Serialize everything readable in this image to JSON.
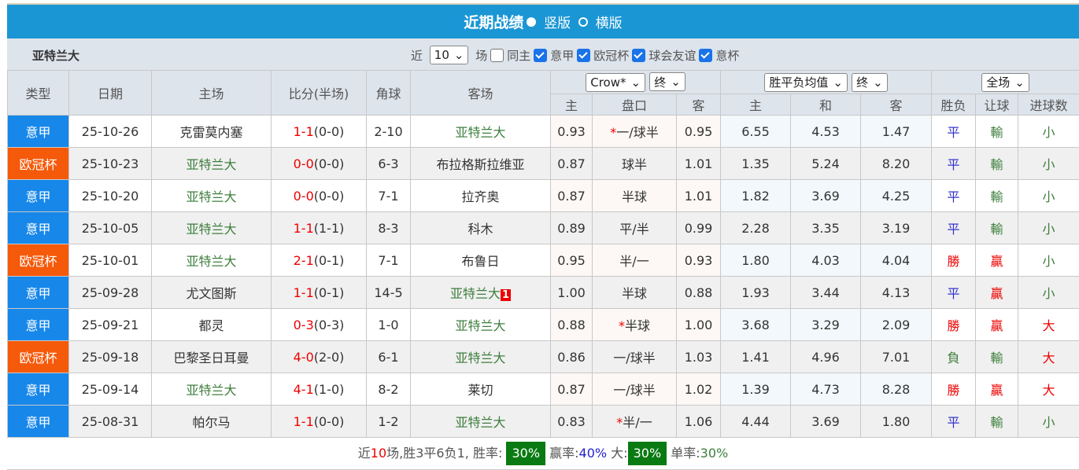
{
  "header": {
    "title": "近期战绩",
    "view_vertical": "竖版",
    "view_horizontal": "横版"
  },
  "filter": {
    "team": "亚特兰大",
    "recent_label": "近",
    "count": "10",
    "matches_label": "场",
    "same_home": "同主",
    "same_home_checked": false,
    "leagues": [
      {
        "label": "意甲",
        "checked": true
      },
      {
        "label": "欧冠杯",
        "checked": true
      },
      {
        "label": "球会友谊",
        "checked": true
      },
      {
        "label": "意杯",
        "checked": true
      }
    ]
  },
  "columns": {
    "type": "类型",
    "date": "日期",
    "home": "主场",
    "score": "比分(半场)",
    "corner": "角球",
    "away": "客场",
    "company_select": "Crow*",
    "final_select1": "终",
    "avg_select": "胜平负均值",
    "final_select2": "终",
    "scope_select": "全场",
    "ah_home": "主",
    "ah_line": "盘口",
    "ah_away": "客",
    "eu_home": "主",
    "eu_draw": "和",
    "eu_away": "客",
    "result": "胜负",
    "handicap": "让球",
    "goals": "进球数"
  },
  "colors": {
    "serie_a": "#1787ea",
    "ucl": "#f55a0a",
    "win": "#e00",
    "draw": "#33c",
    "loss": "#3d7e3d"
  },
  "rows": [
    {
      "type": "意甲",
      "league": "serie_a",
      "date": "25-10-26",
      "home": "克雷莫内塞",
      "ft": "1-1",
      "ht": "(0-0)",
      "corner": "2-10",
      "away": "亚特兰大",
      "hl": "away",
      "ah_h": "0.93",
      "star": true,
      "line": "一/球半",
      "ah_a": "0.95",
      "eh": "6.55",
      "ed": "4.53",
      "ea": "1.47",
      "res": "平",
      "hc": "輸",
      "gl": "小"
    },
    {
      "type": "欧冠杯",
      "league": "ucl",
      "date": "25-10-23",
      "home": "亚特兰大",
      "ft": "0-0",
      "ht": "(0-0)",
      "corner": "6-3",
      "away": "布拉格斯拉维亚",
      "hl": "home",
      "ah_h": "0.87",
      "star": false,
      "line": "球半",
      "ah_a": "1.01",
      "eh": "1.35",
      "ed": "5.24",
      "ea": "8.20",
      "res": "平",
      "hc": "輸",
      "gl": "小"
    },
    {
      "type": "意甲",
      "league": "serie_a",
      "date": "25-10-20",
      "home": "亚特兰大",
      "ft": "0-0",
      "ht": "(0-0)",
      "corner": "7-1",
      "away": "拉齐奥",
      "hl": "home",
      "ah_h": "0.87",
      "star": false,
      "line": "半球",
      "ah_a": "1.01",
      "eh": "1.82",
      "ed": "3.69",
      "ea": "4.25",
      "res": "平",
      "hc": "輸",
      "gl": "小"
    },
    {
      "type": "意甲",
      "league": "serie_a",
      "date": "25-10-05",
      "home": "亚特兰大",
      "ft": "1-1",
      "ht": "(1-1)",
      "corner": "8-3",
      "away": "科木",
      "hl": "home",
      "ah_h": "0.89",
      "star": false,
      "line": "平/半",
      "ah_a": "0.99",
      "eh": "2.28",
      "ed": "3.35",
      "ea": "3.19",
      "res": "平",
      "hc": "輸",
      "gl": "小"
    },
    {
      "type": "欧冠杯",
      "league": "ucl",
      "date": "25-10-01",
      "home": "亚特兰大",
      "ft": "2-1",
      "ht": "(0-1)",
      "corner": "7-1",
      "away": "布鲁日",
      "hl": "home",
      "ah_h": "0.95",
      "star": false,
      "line": "半/一",
      "ah_a": "0.93",
      "eh": "1.80",
      "ed": "4.03",
      "ea": "4.04",
      "res": "勝",
      "hc": "贏",
      "gl": "小"
    },
    {
      "type": "意甲",
      "league": "serie_a",
      "date": "25-09-28",
      "home": "尤文图斯",
      "ft": "1-1",
      "ht": "(0-1)",
      "corner": "14-5",
      "away": "亚特兰大",
      "hl": "away",
      "red_card": "1",
      "ah_h": "1.00",
      "star": false,
      "line": "半球",
      "ah_a": "0.88",
      "eh": "1.93",
      "ed": "3.44",
      "ea": "4.13",
      "res": "平",
      "hc": "贏",
      "gl": "小"
    },
    {
      "type": "意甲",
      "league": "serie_a",
      "date": "25-09-21",
      "home": "都灵",
      "ft": "0-3",
      "ht": "(0-3)",
      "corner": "1-0",
      "away": "亚特兰大",
      "hl": "away",
      "ah_h": "0.88",
      "star": true,
      "line": "半球",
      "ah_a": "1.00",
      "eh": "3.68",
      "ed": "3.29",
      "ea": "2.09",
      "res": "勝",
      "hc": "贏",
      "gl": "大"
    },
    {
      "type": "欧冠杯",
      "league": "ucl",
      "date": "25-09-18",
      "home": "巴黎圣日耳曼",
      "ft": "4-0",
      "ht": "(2-0)",
      "corner": "6-1",
      "away": "亚特兰大",
      "hl": "away",
      "ah_h": "0.86",
      "star": false,
      "line": "一/球半",
      "ah_a": "1.03",
      "eh": "1.41",
      "ed": "4.96",
      "ea": "7.01",
      "res": "負",
      "hc": "輸",
      "gl": "大"
    },
    {
      "type": "意甲",
      "league": "serie_a",
      "date": "25-09-14",
      "home": "亚特兰大",
      "ft": "4-1",
      "ht": "(1-0)",
      "corner": "8-2",
      "away": "莱切",
      "hl": "home",
      "ah_h": "0.87",
      "star": false,
      "line": "一/球半",
      "ah_a": "1.02",
      "eh": "1.39",
      "ed": "4.73",
      "ea": "8.28",
      "res": "勝",
      "hc": "贏",
      "gl": "大"
    },
    {
      "type": "意甲",
      "league": "serie_a",
      "date": "25-08-31",
      "home": "帕尔马",
      "ft": "1-1",
      "ht": "(0-0)",
      "corner": "1-2",
      "away": "亚特兰大",
      "hl": "away",
      "ah_h": "0.83",
      "star": true,
      "line": "半/一",
      "ah_a": "1.06",
      "eh": "4.44",
      "ed": "3.69",
      "ea": "1.80",
      "res": "平",
      "hc": "輸",
      "gl": "小"
    }
  ],
  "summary": {
    "p1": "近",
    "n": "10",
    "p2": "场,胜3平6负1, 胜率:",
    "win_rate": "30%",
    "p3": "赢率:",
    "cover_rate": "40%",
    "p4": "大:",
    "over_rate": "30%",
    "p5": "单率:",
    "odd_rate": "30%"
  }
}
